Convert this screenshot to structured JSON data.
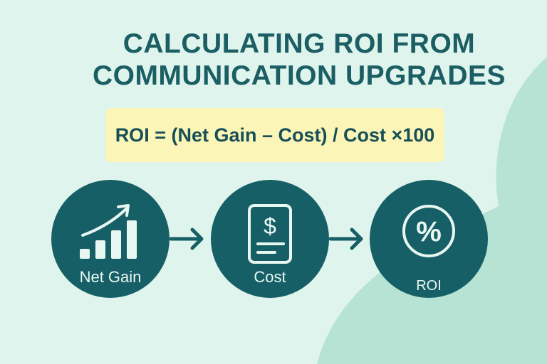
{
  "title": {
    "line1": "CALCULATING ROI FROM",
    "line2": "COMMUNICATION UPGRADES"
  },
  "formula": "ROI = (Net Gain – Cost) / Cost ×100",
  "steps": [
    {
      "label": "Net Gain",
      "icon": "bar-chart-growth-icon"
    },
    {
      "label": "Cost",
      "icon": "dollar-receipt-icon"
    },
    {
      "label": "ROI",
      "icon": "percent-icon"
    }
  ],
  "colors": {
    "background": "#def4ed",
    "accent": "#175f66",
    "formula_bg": "#fcf5b8",
    "blob": "#b6e3d4"
  }
}
